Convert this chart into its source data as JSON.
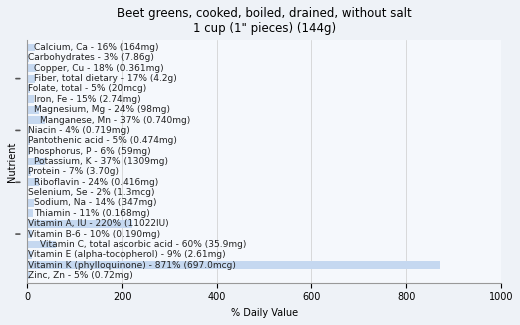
{
  "title": "Beet greens, cooked, boiled, drained, without salt\n1 cup (1\" pieces) (144g)",
  "xlabel": "% Daily Value",
  "ylabel": "Nutrient",
  "xlim": [
    0,
    1000
  ],
  "xticks": [
    0,
    200,
    400,
    600,
    800,
    1000
  ],
  "nutrients": [
    {
      "label": "Calcium, Ca - 16% (164mg)",
      "value": 16,
      "indent": 1,
      "dash": false
    },
    {
      "label": "Carbohydrates - 3% (7.86g)",
      "value": 3,
      "indent": 0,
      "dash": false
    },
    {
      "label": "Copper, Cu - 18% (0.361mg)",
      "value": 18,
      "indent": 1,
      "dash": false
    },
    {
      "label": "Fiber, total dietary - 17% (4.2g)",
      "value": 17,
      "indent": 1,
      "dash": true
    },
    {
      "label": "Folate, total - 5% (20mcg)",
      "value": 5,
      "indent": 0,
      "dash": false
    },
    {
      "label": "Iron, Fe - 15% (2.74mg)",
      "value": 15,
      "indent": 1,
      "dash": false
    },
    {
      "label": "Magnesium, Mg - 24% (98mg)",
      "value": 24,
      "indent": 1,
      "dash": false
    },
    {
      "label": "Manganese, Mn - 37% (0.740mg)",
      "value": 37,
      "indent": 2,
      "dash": false
    },
    {
      "label": "Niacin - 4% (0.719mg)",
      "value": 4,
      "indent": 0,
      "dash": true
    },
    {
      "label": "Pantothenic acid - 5% (0.474mg)",
      "value": 5,
      "indent": 0,
      "dash": false
    },
    {
      "label": "Phosphorus, P - 6% (59mg)",
      "value": 6,
      "indent": 0,
      "dash": false
    },
    {
      "label": "Potassium, K - 37% (1309mg)",
      "value": 37,
      "indent": 1,
      "dash": false
    },
    {
      "label": "Protein - 7% (3.70g)",
      "value": 7,
      "indent": 0,
      "dash": false
    },
    {
      "label": "Riboflavin - 24% (0.416mg)",
      "value": 24,
      "indent": 1,
      "dash": true
    },
    {
      "label": "Selenium, Se - 2% (1.3mcg)",
      "value": 2,
      "indent": 0,
      "dash": false
    },
    {
      "label": "Sodium, Na - 14% (347mg)",
      "value": 14,
      "indent": 1,
      "dash": false
    },
    {
      "label": "Thiamin - 11% (0.168mg)",
      "value": 11,
      "indent": 1,
      "dash": false
    },
    {
      "label": "Vitamin A, IU - 220% (11022IU)",
      "value": 220,
      "indent": 0,
      "dash": false
    },
    {
      "label": "Vitamin B-6 - 10% (0.190mg)",
      "value": 10,
      "indent": 0,
      "dash": true
    },
    {
      "label": "Vitamin C, total ascorbic acid - 60% (35.9mg)",
      "value": 60,
      "indent": 2,
      "dash": false
    },
    {
      "label": "Vitamin E (alpha-tocopherol) - 9% (2.61mg)",
      "value": 9,
      "indent": 0,
      "dash": false
    },
    {
      "label": "Vitamin K (phylloquinone) - 871% (697.0mcg)",
      "value": 871,
      "indent": 0,
      "dash": false
    },
    {
      "label": "Zinc, Zn - 5% (0.72mg)",
      "value": 5,
      "indent": 0,
      "dash": false
    }
  ],
  "bar_color": "#c5d8f0",
  "bg_color": "#eef2f7",
  "plot_bg_color": "#f5f8fc",
  "title_fontsize": 8.5,
  "label_fontsize": 6.5,
  "tick_fontsize": 7,
  "ylabel_fontsize": 7
}
